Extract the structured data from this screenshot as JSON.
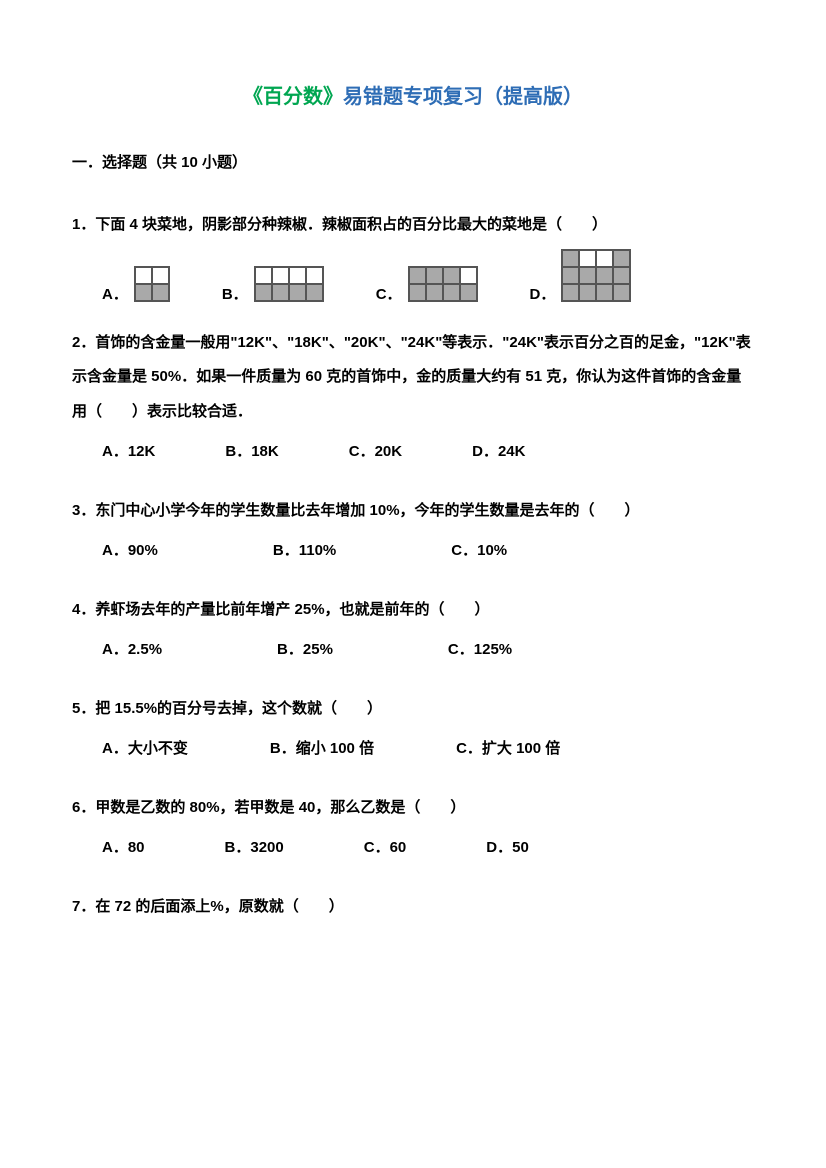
{
  "title": {
    "part1": "《百分数》",
    "part2": "易错题专项复习（提高版）",
    "part1_color": "#00a651",
    "part2_color": "#2e6db5"
  },
  "section_header": "一．选择题（共 10 小题）",
  "questions": [
    {
      "num": "1",
      "text": "．下面 4 块菜地，阴影部分种辣椒．辣椒面积占的百分比最大的菜地是（　　）",
      "type": "grid_options",
      "options": [
        {
          "label": "A．",
          "grid": {
            "cols": 2,
            "rows": 2,
            "cell": 17,
            "cells": [
              "e",
              "e",
              "f",
              "f"
            ]
          }
        },
        {
          "label": "B．",
          "grid": {
            "cols": 4,
            "rows": 2,
            "cell": 17,
            "cells": [
              "e",
              "e",
              "e",
              "e",
              "f",
              "f",
              "f",
              "f"
            ]
          }
        },
        {
          "label": "C．",
          "grid": {
            "cols": 4,
            "rows": 2,
            "cell": 17,
            "cells": [
              "f",
              "f",
              "f",
              "e",
              "f",
              "f",
              "f",
              "f"
            ]
          }
        },
        {
          "label": "D．",
          "grid": {
            "cols": 4,
            "rows": 3,
            "cell": 17,
            "cells": [
              "f",
              "e",
              "e",
              "f",
              "f",
              "f",
              "f",
              "f",
              "f",
              "f",
              "f",
              "f"
            ]
          }
        }
      ]
    },
    {
      "num": "2",
      "text": "．首饰的含金量一般用\"12K\"、\"18K\"、\"20K\"、\"24K\"等表示．\"24K\"表示百分之百的足金，\"12K\"表示含金量是 50%．如果一件质量为 60 克的首饰中，金的质量大约有 51 克，你认为这件首饰的含金量用（　　）表示比较合适．",
      "type": "text_options",
      "options": [
        {
          "label": "A．",
          "text": "12K"
        },
        {
          "label": "B．",
          "text": "18K"
        },
        {
          "label": "C．",
          "text": "20K"
        },
        {
          "label": "D．",
          "text": "24K"
        }
      ],
      "gap": 70
    },
    {
      "num": "3",
      "text": "．东门中心小学今年的学生数量比去年增加 10%，今年的学生数量是去年的（　　）",
      "type": "text_options",
      "options": [
        {
          "label": "A．",
          "text": "90%"
        },
        {
          "label": "B．",
          "text": "110%"
        },
        {
          "label": "C．",
          "text": "10%"
        }
      ],
      "gap": 115
    },
    {
      "num": "4",
      "text": "．养虾场去年的产量比前年增产 25%，也就是前年的（　　）",
      "type": "text_options",
      "options": [
        {
          "label": "A．",
          "text": "2.5%"
        },
        {
          "label": "B．",
          "text": "25%"
        },
        {
          "label": "C．",
          "text": "125%"
        }
      ],
      "gap": 115
    },
    {
      "num": "5",
      "text": "．把 15.5%的百分号去掉，这个数就（　　）",
      "type": "text_options",
      "options": [
        {
          "label": "A．",
          "text": "大小不变"
        },
        {
          "label": "B．",
          "text": "缩小 100 倍"
        },
        {
          "label": "C．",
          "text": "扩大 100 倍"
        }
      ],
      "gap": 82
    },
    {
      "num": "6",
      "text": "．甲数是乙数的 80%，若甲数是 40，那么乙数是（　　）",
      "type": "text_options",
      "options": [
        {
          "label": "A．",
          "text": "80"
        },
        {
          "label": "B．",
          "text": "3200"
        },
        {
          "label": "C．",
          "text": "60"
        },
        {
          "label": "D．",
          "text": "50"
        }
      ],
      "gap": 80
    },
    {
      "num": "7",
      "text": "．在 72 的后面添上%，原数就（　　）",
      "type": "none"
    }
  ]
}
